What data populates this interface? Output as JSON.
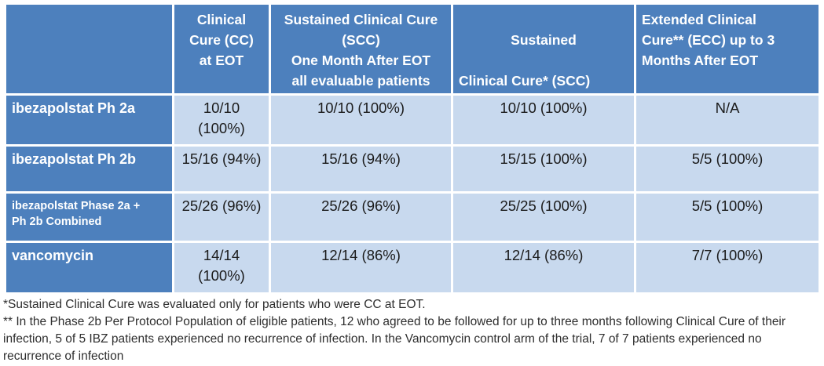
{
  "colors": {
    "header_blue": "#4d80bd",
    "cell_light_blue": "#c8d9ee",
    "border_white": "#ffffff",
    "data_text": "#1b1b1b"
  },
  "table": {
    "header": {
      "corner": "",
      "cc": "Clinical\nCure (CC)\nat EOT",
      "scc_all": "Sustained Clinical Cure\n(SCC)\nOne Month After EOT\nall evaluable patients",
      "scc_line1": "Sustained",
      "scc_rest": "Clinical Cure* (SCC)\nOne Month After EOT",
      "ecc": "Extended Clinical\nCure** (ECC) up to 3\nMonths After EOT"
    },
    "rows": [
      {
        "label": "ibezapolstat Ph 2a",
        "cc": "10/10\n(100%)",
        "scc_all": "10/10 (100%)",
        "scc": "10/10 (100%)",
        "ecc": "N/A"
      },
      {
        "label": "ibezapolstat Ph 2b",
        "cc": "15/16 (94%)",
        "scc_all": "15/16 (94%)",
        "scc": "15/15 (100%)",
        "ecc": "5/5 (100%)"
      },
      {
        "label": "ibezapolstat Phase 2a +\nPh 2b Combined",
        "cc": "25/26 (96%)",
        "scc_all": "25/26 (96%)",
        "scc": "25/25 (100%)",
        "ecc": "5/5 (100%)"
      },
      {
        "label": "vancomycin",
        "cc": "14/14\n(100%)",
        "scc_all": "12/14 (86%)",
        "scc": "12/14 (86%)",
        "ecc": "7/7 (100%)"
      }
    ]
  },
  "footnotes": {
    "note1": "*Sustained Clinical Cure was evaluated only for patients who were CC at EOT.",
    "note2": "** In the Phase 2b Per Protocol Population of eligible patients, 12 who agreed to be followed for up to three months following Clinical Cure of their infection, 5 of 5 IBZ patients experienced no recurrence of infection. In the Vancomycin control arm of the trial, 7 of 7 patients experienced no recurrence of infection"
  }
}
